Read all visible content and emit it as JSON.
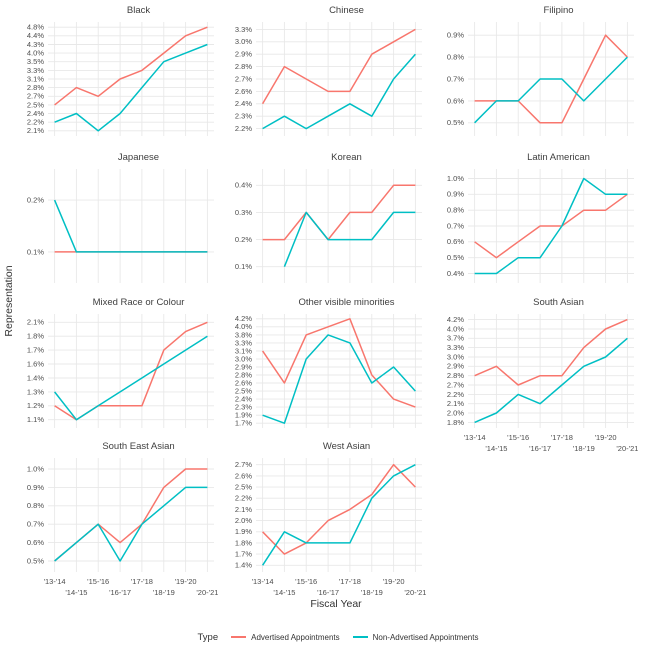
{
  "chart_data": {
    "type": "line",
    "xlabel": "Fiscal Year",
    "ylabel": "Representation",
    "x_categories": [
      "'13-'14",
      "'14-'15",
      "'15-'16",
      "'16-'17",
      "'17-'18",
      "'18-'19",
      "'19-'20",
      "'20-'21"
    ],
    "grid": true,
    "tick_suffix": "%",
    "legend": {
      "title": "Type",
      "position": "bottom",
      "series": [
        {
          "name": "Advertised Appointments",
          "color": "#F8766D"
        },
        {
          "name": "Non-Advertised Appointments",
          "color": "#00BFC4"
        }
      ]
    },
    "facets": [
      {
        "title": "Black",
        "slug": "black",
        "row": 1,
        "col": 1,
        "show_x": false,
        "y_ticks": [
          2.1,
          2.2,
          2.4,
          2.5,
          2.7,
          2.8,
          3.1,
          3.3,
          3.5,
          4.0,
          4.3,
          4.4,
          4.8
        ],
        "advertised": [
          2.5,
          2.8,
          2.7,
          3.1,
          3.3,
          4.0,
          4.4,
          4.8
        ],
        "non_advertised": [
          2.2,
          2.4,
          2.1,
          2.4,
          2.8,
          3.5,
          4.0,
          4.3
        ]
      },
      {
        "title": "Chinese",
        "slug": "chinese",
        "row": 1,
        "col": 2,
        "show_x": false,
        "y_ticks": [
          2.2,
          2.3,
          2.4,
          2.6,
          2.7,
          2.8,
          2.9,
          3.0,
          3.3
        ],
        "advertised": [
          2.4,
          2.8,
          2.7,
          2.6,
          2.6,
          2.9,
          3.0,
          3.3
        ],
        "non_advertised": [
          2.2,
          2.3,
          2.2,
          2.3,
          2.4,
          2.3,
          2.7,
          2.9
        ]
      },
      {
        "title": "Filipino",
        "slug": "filipino",
        "row": 1,
        "col": 3,
        "show_x": false,
        "y_ticks": [
          0.5,
          0.6,
          0.7,
          0.8,
          0.9
        ],
        "advertised": [
          0.6,
          0.6,
          0.6,
          0.5,
          0.5,
          0.7,
          0.9,
          0.8
        ],
        "non_advertised": [
          0.5,
          0.6,
          0.6,
          0.7,
          0.7,
          0.6,
          0.7,
          0.8
        ]
      },
      {
        "title": "Japanese",
        "slug": "japanese",
        "row": 2,
        "col": 1,
        "show_x": false,
        "y_ticks": [
          0.1,
          0.2
        ],
        "advertised": [
          0.1,
          0.1,
          0.1,
          0.1,
          0.1,
          0.1,
          0.1,
          0.1
        ],
        "non_advertised": [
          0.2,
          0.1,
          0.1,
          0.1,
          0.1,
          0.1,
          0.1,
          0.1
        ]
      },
      {
        "title": "Korean",
        "slug": "korean",
        "row": 2,
        "col": 2,
        "show_x": false,
        "y_ticks": [
          0.1,
          0.2,
          0.3,
          0.4
        ],
        "advertised": [
          0.2,
          0.2,
          0.3,
          0.2,
          0.3,
          0.3,
          0.4,
          0.4
        ],
        "non_advertised": [
          null,
          0.1,
          0.3,
          0.2,
          0.2,
          0.2,
          0.3,
          0.3
        ]
      },
      {
        "title": "Latin American",
        "slug": "latin-american",
        "row": 2,
        "col": 3,
        "show_x": false,
        "y_ticks": [
          0.4,
          0.5,
          0.6,
          0.7,
          0.8,
          0.9,
          1.0
        ],
        "advertised": [
          0.6,
          0.5,
          0.6,
          0.7,
          0.7,
          0.8,
          0.8,
          0.9
        ],
        "non_advertised": [
          0.4,
          0.4,
          0.5,
          0.5,
          0.7,
          1.0,
          0.9,
          0.9
        ]
      },
      {
        "title": "Mixed Race or Colour",
        "slug": "mixed-race-or-colour",
        "row": 3,
        "col": 1,
        "show_x": false,
        "y_ticks": [
          1.1,
          1.2,
          1.3,
          1.4,
          1.6,
          1.7,
          1.8,
          2.1
        ],
        "advertised": [
          1.2,
          1.1,
          1.2,
          1.2,
          1.2,
          1.7,
          1.9,
          2.1
        ],
        "non_advertised": [
          1.3,
          1.1,
          1.2,
          1.3,
          1.4,
          1.6,
          1.7,
          1.8
        ]
      },
      {
        "title": "Other visible minorities",
        "slug": "other-visible-minorities",
        "row": 3,
        "col": 2,
        "show_x": false,
        "y_ticks": [
          1.7,
          1.9,
          2.3,
          2.4,
          2.5,
          2.6,
          2.8,
          2.9,
          3.0,
          3.1,
          3.3,
          3.8,
          4.0,
          4.2
        ],
        "advertised": [
          3.1,
          2.6,
          3.8,
          4.0,
          4.2,
          2.8,
          2.4,
          2.3
        ],
        "non_advertised": [
          1.9,
          1.7,
          3.0,
          3.8,
          3.3,
          2.6,
          2.9,
          2.5
        ]
      },
      {
        "title": "South Asian",
        "slug": "south-asian",
        "row": 3,
        "col": 3,
        "show_x": true,
        "y_ticks": [
          1.8,
          2.0,
          2.1,
          2.2,
          2.7,
          2.8,
          2.9,
          3.0,
          3.3,
          3.7,
          4.0,
          4.2
        ],
        "advertised": [
          2.8,
          2.9,
          2.7,
          2.8,
          2.8,
          3.3,
          4.0,
          4.2
        ],
        "non_advertised": [
          1.8,
          2.0,
          2.2,
          2.1,
          2.7,
          2.9,
          3.0,
          3.7
        ]
      },
      {
        "title": "South East Asian",
        "slug": "south-east-asian",
        "row": 4,
        "col": 1,
        "show_x": true,
        "y_ticks": [
          0.5,
          0.6,
          0.7,
          0.8,
          0.9,
          1.0
        ],
        "advertised": [
          0.5,
          0.6,
          0.7,
          0.6,
          0.7,
          0.9,
          1.0,
          1.0
        ],
        "non_advertised": [
          0.5,
          0.6,
          0.7,
          0.5,
          0.7,
          0.8,
          0.9,
          0.9
        ]
      },
      {
        "title": "West Asian",
        "slug": "west-asian",
        "row": 4,
        "col": 2,
        "show_x": true,
        "y_ticks": [
          1.4,
          1.7,
          1.8,
          1.9,
          2.0,
          2.1,
          2.2,
          2.5,
          2.6,
          2.7
        ],
        "advertised": [
          1.9,
          1.7,
          1.8,
          2.0,
          2.1,
          2.3,
          2.7,
          2.5
        ],
        "non_advertised": [
          1.4,
          1.9,
          1.8,
          1.8,
          1.8,
          2.2,
          2.6,
          2.7
        ]
      }
    ]
  }
}
